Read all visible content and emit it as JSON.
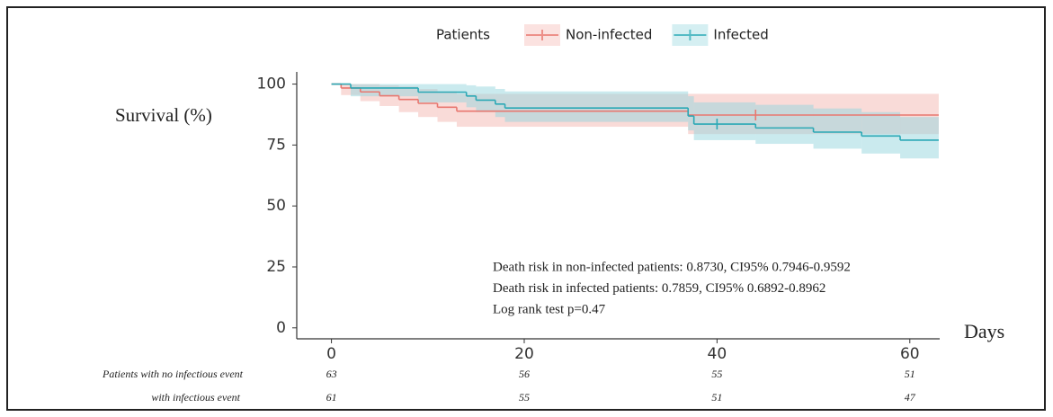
{
  "chart_data": {
    "type": "kaplan-meier",
    "y_label": "Survival (%)",
    "x_label": "Days",
    "legend_title": "Patients",
    "legend_position": "top",
    "xlim": [
      -3.6,
      63.1
    ],
    "ylim": [
      -4.5,
      105
    ],
    "xticks": [
      0,
      20,
      40,
      60
    ],
    "yticks": [
      0,
      25,
      50,
      75,
      100
    ],
    "grid": false,
    "series": [
      {
        "name": "Non-infected",
        "color": "#e8776f",
        "band_color": "#f4b7b2",
        "x": [
          0,
          1,
          3,
          5,
          7,
          9,
          11,
          13,
          37,
          63
        ],
        "values": [
          100,
          98.4,
          96.8,
          95.2,
          93.7,
          92.1,
          90.5,
          88.9,
          87.3,
          87.3
        ],
        "lower": [
          100,
          95.5,
          93,
          91,
          88.5,
          86.5,
          84.5,
          82.5,
          79.5,
          79.5
        ],
        "upper": [
          100,
          100,
          100,
          99.5,
          99,
          98,
          97,
          96,
          96,
          96
        ],
        "censored": [
          {
            "x": 44,
            "y": 87.3
          }
        ]
      },
      {
        "name": "Infected",
        "color": "#2aa8b5",
        "band_color": "#96d6de",
        "x": [
          0,
          2,
          9,
          14,
          15,
          17,
          18,
          37,
          37.6,
          44,
          50,
          55,
          59,
          63
        ],
        "values": [
          100,
          98.4,
          96.7,
          95.1,
          93.4,
          91.8,
          90.2,
          86.9,
          83.6,
          82,
          80.3,
          78.7,
          77,
          77
        ],
        "lower": [
          100,
          95,
          92.5,
          90.5,
          88.5,
          86.5,
          84.5,
          81,
          77,
          75.5,
          73.5,
          71.5,
          69.5,
          69.5
        ],
        "upper": [
          100,
          100,
          100,
          99.5,
          99,
          98,
          97,
          95,
          92.5,
          91.5,
          90,
          88.5,
          86.5,
          86.5
        ],
        "censored": [
          {
            "x": 40,
            "y": 83.6
          }
        ]
      }
    ],
    "annotations": [
      "Death risk in non-infected patients: 0.8730, CI95% 0.7946-0.9592",
      "Death risk in infected patients: 0.7859, CI95% 0.6892-0.8962",
      "Log rank test p=0.47"
    ],
    "risk_table": {
      "rows": [
        {
          "label": "Patients with no infectious event",
          "values": [
            63,
            56,
            55,
            51
          ]
        },
        {
          "label": "with infectious event",
          "values": [
            61,
            55,
            51,
            47
          ]
        }
      ]
    }
  }
}
